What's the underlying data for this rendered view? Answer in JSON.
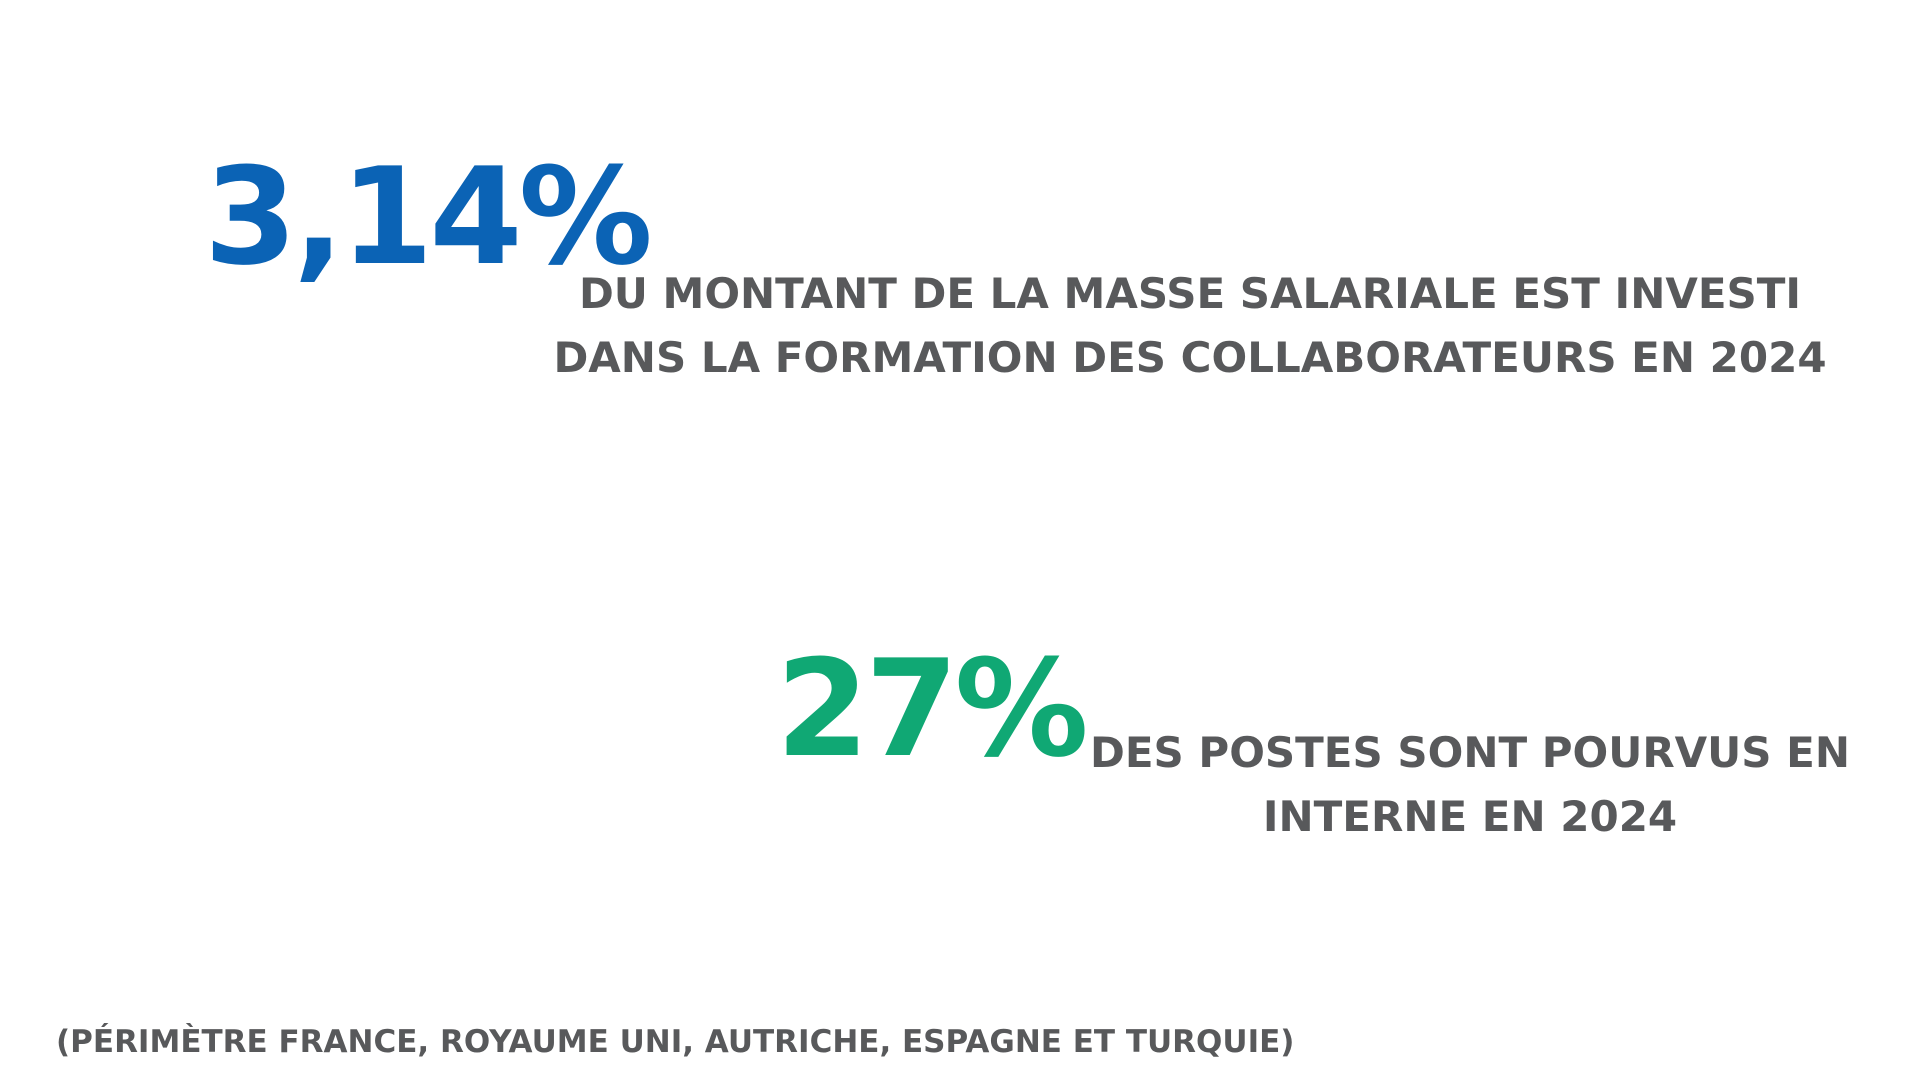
{
  "colors": {
    "stat1_accent": "#0b63b5",
    "stat2_accent": "#10a874",
    "text": "#58595b",
    "background": "#ffffff"
  },
  "stats": [
    {
      "value": "3,14%",
      "description_lines": [
        "DU MONTANT DE LA MASSE SALARIALE EST INVESTI",
        "DANS LA FORMATION DES COLLABORATEURS EN 2024"
      ]
    },
    {
      "value": "27%",
      "description_lines": [
        "DES POSTES SONT POURVUS EN",
        "INTERNE EN 2024"
      ]
    }
  ],
  "footnote": "(PÉRIMÈTRE FRANCE, ROYAUME UNI, AUTRICHE, ESPAGNE ET TURQUIE)"
}
